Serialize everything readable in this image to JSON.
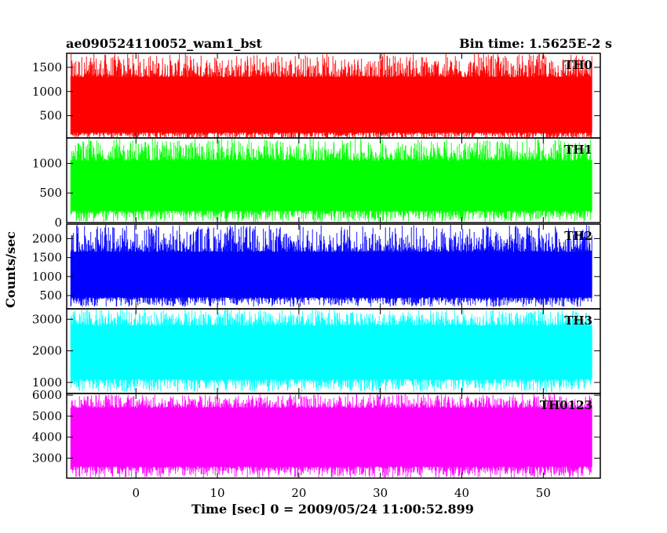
{
  "chart_data": {
    "type": "line",
    "title_left": "ae090524110052_wam1_bst",
    "title_right": "Bin time: 1.5625E-2 s",
    "xlabel": "Time [sec] 0 = 2009/05/24 11:00:52.899",
    "ylabel": "Counts/sec",
    "xlim": [
      -8.5,
      57
    ],
    "x_data_range": [
      -8,
      56
    ],
    "x_ticks": [
      0,
      10,
      20,
      30,
      40,
      50
    ],
    "x_tick_labels": [
      "0",
      "10",
      "20",
      "30",
      "40",
      "50"
    ],
    "grid": false,
    "panels": [
      {
        "name": "TH0",
        "color": "#ff0000",
        "ylim": [
          40,
          1790
        ],
        "yticks": [
          500,
          1000,
          1500
        ],
        "ytick_labels": [
          "500",
          "1000",
          "1500"
        ],
        "band": [
          150,
          1300
        ],
        "spike_range": [
          20,
          1790
        ]
      },
      {
        "name": "TH1",
        "color": "#00ff00",
        "ylim": [
          0,
          1430
        ],
        "yticks": [
          0,
          500,
          1000
        ],
        "ytick_labels": [
          "0",
          "500",
          "1000"
        ],
        "band": [
          200,
          1050
        ],
        "spike_range": [
          5,
          1420
        ]
      },
      {
        "name": "TH2",
        "color": "#0000ff",
        "ylim": [
          150,
          2380
        ],
        "yticks": [
          500,
          1000,
          1500,
          2000
        ],
        "ytick_labels": [
          "500",
          "1000",
          "1500",
          "2000"
        ],
        "band": [
          450,
          1650
        ],
        "spike_range": [
          200,
          2370
        ]
      },
      {
        "name": "TH3",
        "color": "#00ffff",
        "ylim": [
          650,
          3330
        ],
        "yticks": [
          1000,
          2000,
          3000
        ],
        "ytick_labels": [
          "1000",
          "2000",
          "3000"
        ],
        "band": [
          1100,
          2800
        ],
        "spike_range": [
          700,
          3320
        ]
      },
      {
        "name": "TH0123",
        "color": "#ff00ff",
        "ylim": [
          2050,
          6080
        ],
        "yticks": [
          3000,
          4000,
          5000,
          6000
        ],
        "ytick_labels": [
          "3000",
          "4000",
          "5000",
          "6000"
        ],
        "band": [
          2600,
          5400
        ],
        "spike_range": [
          2060,
          6060
        ]
      }
    ]
  }
}
